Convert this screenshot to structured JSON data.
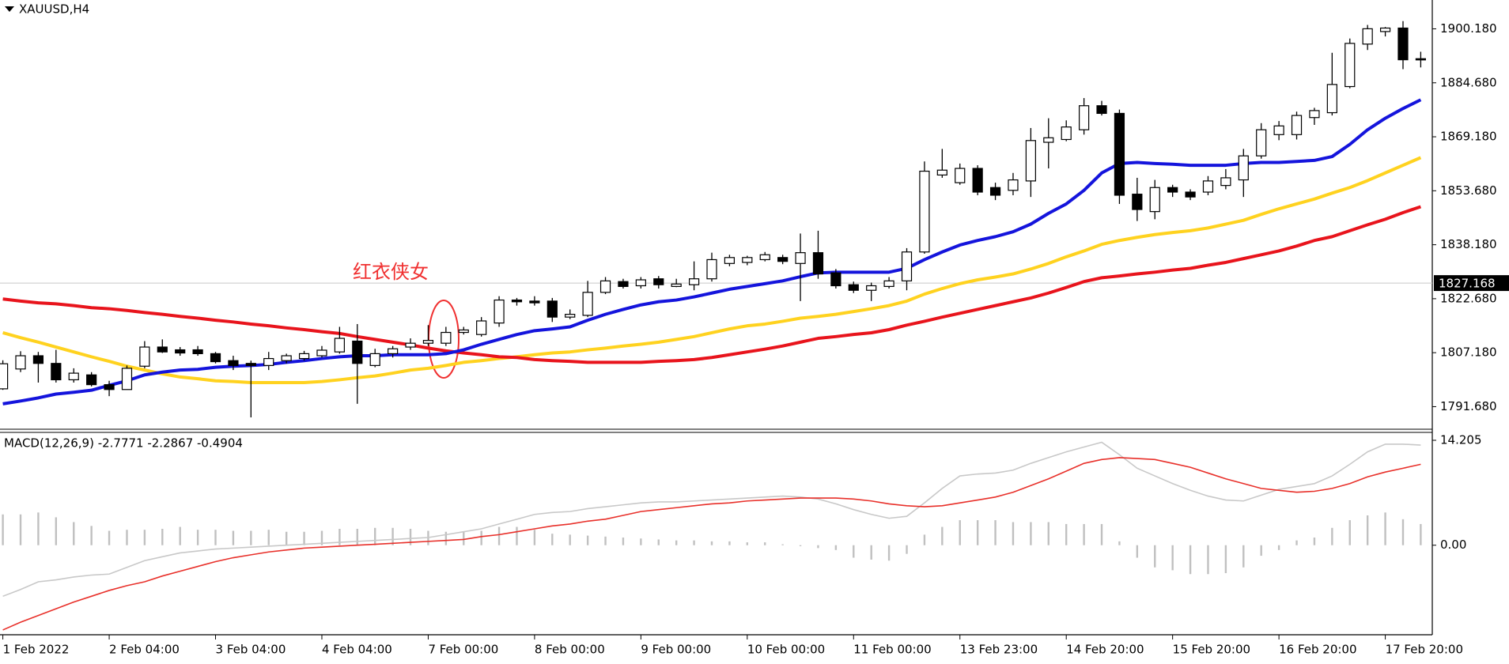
{
  "chart_data": [
    {
      "type": "candlestick",
      "title": "XAUUSD,H4",
      "categories": [
        "1 Feb 2022",
        null,
        null,
        null,
        null,
        null,
        "2 Feb 04:00",
        null,
        null,
        null,
        null,
        null,
        "3 Feb 04:00",
        null,
        null,
        null,
        null,
        null,
        "4 Feb 04:00",
        null,
        null,
        null,
        null,
        null,
        "7 Feb 00:00",
        null,
        null,
        null,
        null,
        null,
        "8 Feb 00:00",
        null,
        null,
        null,
        null,
        null,
        "9 Feb 00:00",
        null,
        null,
        null,
        null,
        null,
        "10 Feb 00:00",
        null,
        null,
        null,
        null,
        null,
        "11 Feb 00:00",
        null,
        null,
        null,
        null,
        null,
        "13 Feb 23:00",
        null,
        null,
        null,
        null,
        null,
        "14 Feb 20:00",
        null,
        null,
        null,
        null,
        null,
        "15 Feb 20:00",
        null,
        null,
        null,
        null,
        null,
        "16 Feb 20:00",
        null,
        null,
        null,
        null,
        null,
        "17 Feb 20:00",
        null,
        null
      ],
      "open": [
        1796.8,
        1802.5,
        1806.3,
        1804.1,
        1799.4,
        1800.8,
        1798.0,
        1796.6,
        1803.3,
        1808.8,
        1808.0,
        1808.0,
        1806.9,
        1804.9,
        1804.1,
        1803.5,
        1804.9,
        1805.5,
        1806.3,
        1807.4,
        1810.5,
        1803.5,
        1806.9,
        1808.8,
        1809.9,
        1809.9,
        1813.0,
        1812.4,
        1815.7,
        1822.3,
        1822.0,
        1822.0,
        1817.4,
        1817.9,
        1824.5,
        1827.6,
        1826.4,
        1828.4,
        1826.2,
        1826.7,
        1828.4,
        1832.8,
        1833.1,
        1833.9,
        1834.5,
        1832.8,
        1835.9,
        1830.1,
        1826.7,
        1825.1,
        1826.2,
        1827.8,
        1836.1,
        1858.2,
        1856.0,
        1860.1,
        1854.6,
        1853.8,
        1856.5,
        1867.6,
        1868.4,
        1871.2,
        1878.1,
        1875.9,
        1852.7,
        1847.7,
        1854.6,
        1853.3,
        1853.3,
        1855.2,
        1856.8,
        1863.7,
        1869.8,
        1869.8,
        1874.7,
        1876.1,
        1883.6,
        1895.8,
        1899.4,
        1900.4,
        1891.6
      ],
      "high": [
        1805.0,
        1807.6,
        1807.4,
        1808.0,
        1802.7,
        1801.6,
        1799.1,
        1803.5,
        1810.5,
        1811.0,
        1808.8,
        1809.1,
        1807.4,
        1806.3,
        1804.9,
        1807.4,
        1806.9,
        1807.7,
        1809.1,
        1814.6,
        1815.4,
        1808.3,
        1809.1,
        1811.3,
        1815.1,
        1814.6,
        1814.6,
        1817.4,
        1823.4,
        1822.9,
        1823.4,
        1822.9,
        1819.6,
        1827.8,
        1828.9,
        1828.4,
        1828.9,
        1829.2,
        1828.4,
        1833.4,
        1835.9,
        1835.3,
        1835.0,
        1836.1,
        1835.3,
        1841.4,
        1842.2,
        1831.2,
        1827.6,
        1827.3,
        1828.9,
        1837.2,
        1862.1,
        1865.7,
        1861.5,
        1861.0,
        1856.0,
        1858.8,
        1871.7,
        1874.5,
        1873.9,
        1880.3,
        1879.5,
        1877.0,
        1857.4,
        1856.8,
        1855.4,
        1854.1,
        1857.9,
        1859.9,
        1865.7,
        1873.1,
        1873.7,
        1876.4,
        1877.5,
        1893.3,
        1897.4,
        1901.3,
        1900.7,
        1902.4,
        1893.6
      ],
      "low": [
        1796.5,
        1801.6,
        1798.6,
        1798.6,
        1798.6,
        1797.5,
        1794.7,
        1796.6,
        1802.7,
        1807.1,
        1806.3,
        1806.3,
        1804.1,
        1802.2,
        1788.6,
        1802.2,
        1804.1,
        1804.9,
        1805.8,
        1806.9,
        1792.5,
        1803.0,
        1805.8,
        1808.0,
        1809.1,
        1809.1,
        1812.4,
        1811.8,
        1814.6,
        1820.7,
        1820.7,
        1816.0,
        1816.8,
        1817.4,
        1824.0,
        1825.6,
        1825.6,
        1825.6,
        1826.0,
        1825.1,
        1827.6,
        1832.0,
        1832.3,
        1833.4,
        1832.6,
        1822.0,
        1828.4,
        1825.6,
        1824.3,
        1822.0,
        1825.6,
        1825.1,
        1835.6,
        1857.4,
        1855.4,
        1852.4,
        1851.0,
        1852.4,
        1851.9,
        1860.1,
        1867.9,
        1869.8,
        1875.3,
        1849.9,
        1845.0,
        1845.5,
        1851.9,
        1851.0,
        1852.4,
        1854.1,
        1851.9,
        1862.9,
        1868.2,
        1868.4,
        1872.6,
        1875.3,
        1883.1,
        1894.1,
        1898.0,
        1888.6,
        1889.1
      ],
      "close": [
        1804.0,
        1806.3,
        1804.1,
        1799.4,
        1801.3,
        1798.0,
        1796.6,
        1802.7,
        1808.8,
        1807.4,
        1807.1,
        1806.9,
        1804.6,
        1803.5,
        1803.5,
        1805.5,
        1806.3,
        1806.9,
        1807.9,
        1811.3,
        1804.1,
        1806.9,
        1808.3,
        1809.9,
        1810.7,
        1813.0,
        1813.7,
        1816.3,
        1822.3,
        1821.8,
        1821.5,
        1817.4,
        1818.2,
        1824.5,
        1827.8,
        1826.2,
        1828.1,
        1826.7,
        1826.9,
        1828.4,
        1833.9,
        1834.5,
        1834.5,
        1835.3,
        1833.4,
        1835.9,
        1829.8,
        1826.4,
        1825.1,
        1826.4,
        1827.8,
        1836.1,
        1859.3,
        1859.6,
        1860.1,
        1853.3,
        1852.4,
        1856.8,
        1868.1,
        1868.9,
        1872.0,
        1878.1,
        1875.9,
        1852.4,
        1848.3,
        1854.6,
        1853.3,
        1851.9,
        1856.5,
        1857.4,
        1863.7,
        1871.2,
        1872.3,
        1875.3,
        1876.7,
        1884.2,
        1896.0,
        1900.2,
        1900.4,
        1891.3,
        1891.3
      ],
      "up_color": "#ffffff",
      "down_color": "#000000",
      "wick_color": "#000000",
      "lines": [
        {
          "color": "#ffd21f",
          "values": [
            1812.9,
            1811.5,
            1810.2,
            1808.8,
            1807.4,
            1806.0,
            1804.7,
            1803.3,
            1802.2,
            1801.1,
            1800.2,
            1799.7,
            1799.1,
            1798.9,
            1798.6,
            1798.6,
            1798.6,
            1798.6,
            1798.9,
            1799.4,
            1800.0,
            1800.5,
            1801.3,
            1802.2,
            1802.7,
            1803.5,
            1804.4,
            1804.9,
            1805.5,
            1806.0,
            1806.6,
            1807.1,
            1807.4,
            1808.0,
            1808.5,
            1809.1,
            1809.6,
            1810.2,
            1811.0,
            1811.8,
            1812.9,
            1814.0,
            1814.9,
            1815.4,
            1816.2,
            1817.1,
            1817.6,
            1818.2,
            1819.0,
            1819.8,
            1820.7,
            1822.0,
            1824.0,
            1825.6,
            1827.0,
            1828.1,
            1828.9,
            1829.8,
            1831.2,
            1832.8,
            1834.7,
            1836.4,
            1838.3,
            1839.4,
            1840.3,
            1841.1,
            1841.7,
            1842.2,
            1843.0,
            1844.1,
            1845.2,
            1846.9,
            1848.5,
            1849.9,
            1851.3,
            1853.0,
            1854.6,
            1856.6,
            1858.8,
            1861.0,
            1863.2
          ]
        },
        {
          "color": "#e8141c",
          "values": [
            1822.6,
            1822.0,
            1821.5,
            1821.2,
            1820.7,
            1820.1,
            1819.8,
            1819.3,
            1818.7,
            1818.2,
            1817.6,
            1817.1,
            1816.5,
            1816.0,
            1815.4,
            1814.9,
            1814.3,
            1813.8,
            1813.2,
            1812.7,
            1811.8,
            1811.0,
            1810.2,
            1809.4,
            1808.5,
            1807.7,
            1807.1,
            1806.6,
            1806.0,
            1805.8,
            1805.2,
            1804.9,
            1804.7,
            1804.4,
            1804.4,
            1804.4,
            1804.4,
            1804.7,
            1804.9,
            1805.2,
            1805.8,
            1806.6,
            1807.4,
            1808.2,
            1809.1,
            1810.2,
            1811.3,
            1811.8,
            1812.4,
            1812.9,
            1813.8,
            1815.1,
            1816.2,
            1817.4,
            1818.5,
            1819.6,
            1820.7,
            1821.8,
            1822.9,
            1824.3,
            1825.9,
            1827.6,
            1828.7,
            1829.2,
            1829.8,
            1830.3,
            1830.9,
            1831.4,
            1832.3,
            1833.1,
            1834.2,
            1835.3,
            1836.4,
            1837.8,
            1839.4,
            1840.5,
            1842.2,
            1843.9,
            1845.5,
            1847.4,
            1849.1
          ]
        },
        {
          "color": "#1414dc",
          "values": [
            1792.5,
            1793.3,
            1794.2,
            1795.3,
            1795.8,
            1796.4,
            1797.8,
            1799.1,
            1800.8,
            1801.6,
            1802.2,
            1802.4,
            1803.0,
            1803.3,
            1803.5,
            1803.8,
            1804.4,
            1804.9,
            1805.5,
            1806.0,
            1806.3,
            1806.3,
            1806.6,
            1806.6,
            1806.6,
            1806.9,
            1808.0,
            1809.6,
            1811.0,
            1812.4,
            1813.5,
            1814.0,
            1814.6,
            1816.5,
            1818.2,
            1819.6,
            1820.9,
            1821.8,
            1822.3,
            1823.2,
            1824.3,
            1825.4,
            1826.2,
            1827.0,
            1827.8,
            1829.0,
            1830.1,
            1830.3,
            1830.3,
            1830.3,
            1830.3,
            1831.4,
            1833.9,
            1836.1,
            1838.1,
            1839.4,
            1840.5,
            1841.9,
            1844.1,
            1847.2,
            1849.9,
            1853.8,
            1858.8,
            1861.5,
            1861.8,
            1861.5,
            1861.3,
            1861.0,
            1861.0,
            1861.0,
            1861.5,
            1861.8,
            1861.8,
            1862.1,
            1862.4,
            1863.5,
            1867.0,
            1871.2,
            1874.5,
            1877.3,
            1879.8
          ]
        }
      ],
      "hline": 1827.168,
      "hline_color": "#c8c8c8",
      "annotation": "红衣侠女",
      "annotation_color": "#f03030",
      "ylim": [
        1785.88,
        1908.46
      ],
      "yticks": [
        {
          "value": 1900.18,
          "label": "1900.180"
        },
        {
          "value": 1884.68,
          "label": "1884.680"
        },
        {
          "value": 1869.18,
          "label": "1869.180"
        },
        {
          "value": 1853.68,
          "label": "1853.680"
        },
        {
          "value": 1838.18,
          "label": "1838.180"
        },
        {
          "value": 1822.68,
          "label": "1822.680"
        },
        {
          "value": 1807.18,
          "label": "1807.180"
        },
        {
          "value": 1791.68,
          "label": "1791.680"
        }
      ]
    },
    {
      "type": "macd",
      "title": "MACD(12,26,9) -2.7771 -2.2867 -0.4904",
      "histogram": {
        "color": "#c0c0c0",
        "values": [
          4.17,
          4.17,
          4.43,
          3.78,
          3.13,
          2.61,
          1.95,
          2.09,
          2.09,
          2.22,
          2.48,
          2.09,
          2.09,
          1.95,
          1.95,
          2.09,
          1.82,
          1.82,
          1.95,
          2.22,
          2.22,
          2.35,
          2.35,
          2.22,
          1.95,
          1.82,
          1.82,
          1.95,
          2.48,
          2.48,
          2.09,
          1.56,
          1.43,
          1.3,
          1.17,
          1.04,
          0.91,
          0.78,
          0.65,
          0.65,
          0.52,
          0.52,
          0.39,
          0.39,
          0.13,
          -0.13,
          -0.39,
          -0.65,
          -1.69,
          -1.95,
          -2.09,
          -1.17,
          1.43,
          2.48,
          3.39,
          3.39,
          3.39,
          3.13,
          3.13,
          3.13,
          2.87,
          2.87,
          2.87,
          0.52,
          -1.69,
          -3.0,
          -3.39,
          -3.91,
          -3.91,
          -3.78,
          -3.0,
          -1.43,
          -0.65,
          0.65,
          1.04,
          2.35,
          3.39,
          4.04,
          4.43,
          3.52,
          2.87
        ]
      },
      "lines": [
        {
          "color": "#c8c8c8",
          "values": [
            -6.91,
            -5.99,
            -4.95,
            -4.69,
            -4.3,
            -4.04,
            -3.91,
            -3.0,
            -2.09,
            -1.56,
            -1.04,
            -0.78,
            -0.52,
            -0.39,
            -0.26,
            -0.13,
            0,
            0.13,
            0.26,
            0.39,
            0.52,
            0.65,
            0.78,
            0.91,
            1.04,
            1.43,
            1.82,
            2.22,
            2.87,
            3.52,
            4.17,
            4.43,
            4.56,
            4.95,
            5.21,
            5.47,
            5.73,
            5.86,
            5.86,
            5.99,
            6.12,
            6.25,
            6.39,
            6.52,
            6.65,
            6.52,
            6.25,
            5.6,
            4.82,
            4.17,
            3.65,
            3.91,
            5.73,
            7.69,
            9.38,
            9.64,
            9.77,
            10.16,
            11.08,
            11.86,
            12.64,
            13.29,
            13.94,
            12.25,
            10.42,
            9.38,
            8.34,
            7.43,
            6.65,
            6.12,
            5.99,
            6.78,
            7.56,
            7.95,
            8.34,
            9.38,
            10.95,
            12.64,
            13.68,
            13.68,
            13.55
          ]
        },
        {
          "color": "#e8302a",
          "values": [
            -11.47,
            -10.42,
            -9.51,
            -8.6,
            -7.69,
            -6.91,
            -6.12,
            -5.47,
            -4.95,
            -4.17,
            -3.52,
            -2.87,
            -2.22,
            -1.69,
            -1.3,
            -0.91,
            -0.65,
            -0.39,
            -0.26,
            -0.13,
            0,
            0.13,
            0.26,
            0.39,
            0.52,
            0.65,
            0.78,
            1.17,
            1.43,
            1.82,
            2.22,
            2.61,
            2.87,
            3.26,
            3.52,
            4.04,
            4.56,
            4.82,
            5.08,
            5.34,
            5.6,
            5.73,
            5.99,
            6.12,
            6.25,
            6.39,
            6.39,
            6.39,
            6.25,
            5.99,
            5.6,
            5.34,
            5.21,
            5.34,
            5.73,
            6.12,
            6.52,
            7.17,
            8.08,
            8.99,
            10.03,
            11.08,
            11.6,
            11.86,
            11.73,
            11.6,
            11.08,
            10.55,
            9.77,
            8.99,
            8.34,
            7.69,
            7.43,
            7.17,
            7.3,
            7.69,
            8.34,
            9.25,
            9.9,
            10.42,
            10.95
          ]
        }
      ],
      "ylim": [
        -12.12,
        15.38
      ],
      "yticks": [
        14.205,
        {
          "value": 0,
          "label": "0.00"
        }
      ]
    }
  ]
}
